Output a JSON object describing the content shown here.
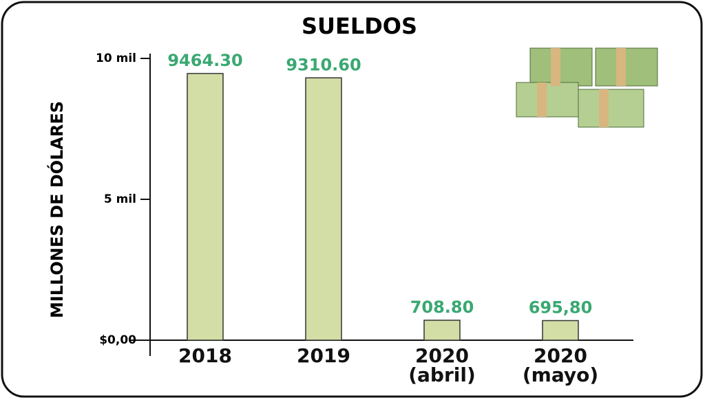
{
  "chart_data": {
    "type": "bar",
    "title": "SUELDOS",
    "y_label": "MILLONES DE DÓLARES",
    "categories": [
      "2018",
      "2019",
      "2020\n(abril)",
      "2020\n(mayo)"
    ],
    "values": [
      9464.3,
      9310.6,
      708.8,
      695.8
    ],
    "value_labels": [
      "9464.30",
      "9310.60",
      "708.80",
      "695,80"
    ],
    "color": "#d3dea6",
    "label_color": "#3aa872",
    "ylim": [
      0,
      10000
    ],
    "yticks": [
      {
        "value": 0,
        "label": "$0,00"
      },
      {
        "value": 5000,
        "label": "5 mil"
      },
      {
        "value": 10000,
        "label": "10 mil"
      }
    ],
    "grid": false
  }
}
